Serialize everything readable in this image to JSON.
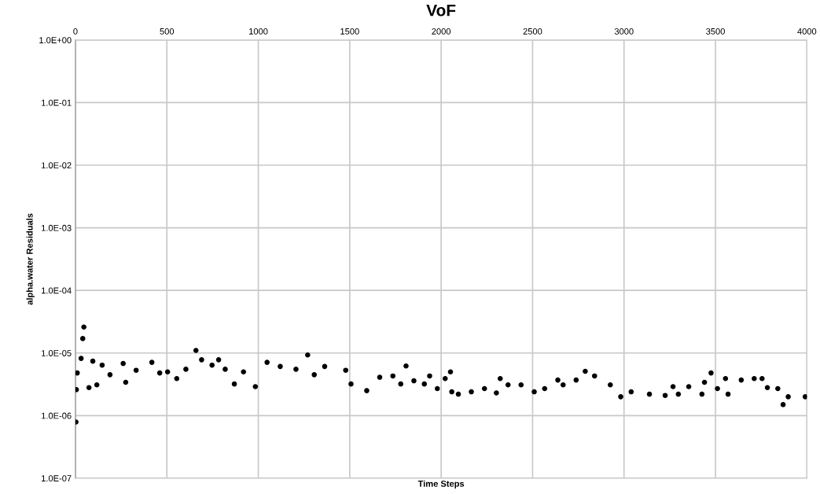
{
  "chart_data": {
    "type": "scatter",
    "title": "VoF",
    "xlabel": "Time Steps",
    "ylabel": "alpha.water Residuals",
    "log": "y",
    "grid": true,
    "marker": "circle",
    "xlim": [
      0,
      4000
    ],
    "xticks": [
      0,
      500,
      1000,
      1500,
      2000,
      2500,
      3000,
      3500,
      4000
    ],
    "ylim": [
      1e-07,
      1
    ],
    "yticks": [
      {
        "value": 1e-07,
        "label": "1.0E-07"
      },
      {
        "value": 1e-06,
        "label": "1.0E-06"
      },
      {
        "value": 1e-05,
        "label": "1.0E-05"
      },
      {
        "value": 0.0001,
        "label": "1.0E-04"
      },
      {
        "value": 0.001,
        "label": "1.0E-03"
      },
      {
        "value": 0.01,
        "label": "1.0E-02"
      },
      {
        "value": 0.1,
        "label": "1.0E-01"
      },
      {
        "value": 1,
        "label": "1.0E+00"
      }
    ],
    "x": [
      3,
      5,
      10,
      31,
      40,
      46,
      74,
      95,
      117,
      146,
      189,
      261,
      275,
      332,
      418,
      461,
      504,
      554,
      604,
      659,
      690,
      747,
      783,
      819,
      869,
      919,
      984,
      1048,
      1120,
      1206,
      1270,
      1306,
      1363,
      1478,
      1507,
      1593,
      1664,
      1736,
      1779,
      1808,
      1851,
      1908,
      1937,
      1979,
      2022,
      2051,
      2058,
      2094,
      2165,
      2237,
      2302,
      2323,
      2366,
      2437,
      2509,
      2566,
      2638,
      2667,
      2738,
      2788,
      2839,
      2925,
      2982,
      3039,
      3139,
      3225,
      3268,
      3297,
      3354,
      3426,
      3440,
      3476,
      3511,
      3555,
      3569,
      3641,
      3712,
      3755,
      3784,
      3841,
      3870,
      3898,
      3991
    ],
    "series": [
      {
        "color": "#000000",
        "values": [
          7.9e-07,
          2.6e-06,
          4.8e-06,
          8.2e-06,
          1.7e-05,
          2.6e-05,
          2.8e-06,
          7.4e-06,
          3.1e-06,
          6.4e-06,
          4.5e-06,
          6.8e-06,
          3.4e-06,
          5.3e-06,
          7.1e-06,
          4.8e-06,
          5e-06,
          3.9e-06,
          5.5e-06,
          1.1e-05,
          7.8e-06,
          6.4e-06,
          7.8e-06,
          5.5e-06,
          3.2e-06,
          5e-06,
          2.9e-06,
          7.1e-06,
          6.1e-06,
          5.5e-06,
          9.3e-06,
          4.5e-06,
          6.1e-06,
          5.3e-06,
          3.2e-06,
          2.5e-06,
          4.1e-06,
          4.3e-06,
          3.2e-06,
          6.2e-06,
          3.6e-06,
          3.2e-06,
          4.3e-06,
          2.7e-06,
          3.9e-06,
          5e-06,
          2.4e-06,
          2.2e-06,
          2.4e-06,
          2.7e-06,
          2.3e-06,
          3.9e-06,
          3.1e-06,
          3.1e-06,
          2.4e-06,
          2.7e-06,
          3.7e-06,
          3.1e-06,
          3.7e-06,
          5.1e-06,
          4.3e-06,
          3.1e-06,
          2e-06,
          2.4e-06,
          2.2e-06,
          2.1e-06,
          2.9e-06,
          2.2e-06,
          2.9e-06,
          2.2e-06,
          3.4e-06,
          4.8e-06,
          2.7e-06,
          3.9e-06,
          2.2e-06,
          3.7e-06,
          3.9e-06,
          3.9e-06,
          2.8e-06,
          2.7e-06,
          1.5e-06,
          2e-06,
          2e-06
        ]
      }
    ]
  }
}
